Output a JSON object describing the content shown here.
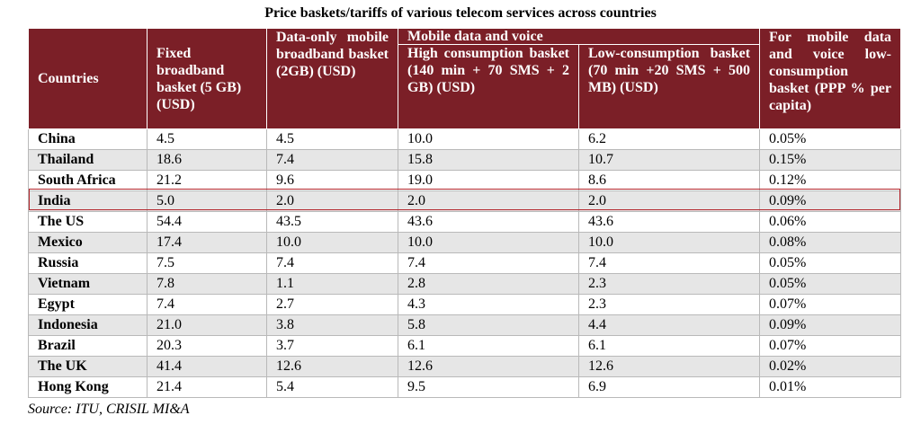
{
  "title": "Price baskets/tariffs of various telecom services across countries",
  "headers": {
    "countries": "Countries",
    "fixed_broadband": "Fixed broadband basket (5 GB) (USD)",
    "data_only": "Data-only mobile broadband basket (2GB) (USD)",
    "mobile_group": "Mobile data and voice",
    "high_consumption": "High consumption basket (140 min + 70 SMS + 2 GB) (USD)",
    "low_consumption": "Low-consumption basket (70 min +20 SMS + 500 MB) (USD)",
    "ppp": "For mobile data and voice low-consumption basket (PPP % per capita)"
  },
  "rows": [
    {
      "country": "China",
      "fixed": "4.5",
      "data": "4.5",
      "high": "10.0",
      "low": "6.2",
      "ppp": "0.05%"
    },
    {
      "country": "Thailand",
      "fixed": "18.6",
      "data": "7.4",
      "high": "15.8",
      "low": "10.7",
      "ppp": "0.15%"
    },
    {
      "country": "South Africa",
      "fixed": "21.2",
      "data": "9.6",
      "high": "19.0",
      "low": "8.6",
      "ppp": "0.12%"
    },
    {
      "country": "India",
      "fixed": "5.0",
      "data": "2.0",
      "high": "2.0",
      "low": "2.0",
      "ppp": "0.09%"
    },
    {
      "country": "The US",
      "fixed": "54.4",
      "data": "43.5",
      "high": "43.6",
      "low": "43.6",
      "ppp": "0.06%"
    },
    {
      "country": "Mexico",
      "fixed": "17.4",
      "data": "10.0",
      "high": "10.0",
      "low": "10.0",
      "ppp": "0.08%"
    },
    {
      "country": "Russia",
      "fixed": "7.5",
      "data": "7.4",
      "high": "7.4",
      "low": "7.4",
      "ppp": "0.05%"
    },
    {
      "country": "Vietnam",
      "fixed": "7.8",
      "data": "1.1",
      "high": "2.8",
      "low": "2.3",
      "ppp": "0.05%"
    },
    {
      "country": "Egypt",
      "fixed": "7.4",
      "data": "2.7",
      "high": "4.3",
      "low": "2.3",
      "ppp": "0.07%"
    },
    {
      "country": "Indonesia",
      "fixed": "21.0",
      "data": "3.8",
      "high": "5.8",
      "low": "4.4",
      "ppp": "0.09%"
    },
    {
      "country": "Brazil",
      "fixed": "20.3",
      "data": "3.7",
      "high": "6.1",
      "low": "6.1",
      "ppp": "0.07%"
    },
    {
      "country": "The UK",
      "fixed": "41.4",
      "data": "12.6",
      "high": "12.6",
      "low": "12.6",
      "ppp": "0.02%"
    },
    {
      "country": "Hong Kong",
      "fixed": "21.4",
      "data": "5.4",
      "high": "9.5",
      "low": "6.9",
      "ppp": "0.01%"
    }
  ],
  "source": "Source: ITU, CRISIL MI&A",
  "colors": {
    "header_bg": "#7b1f27",
    "highlight_border": "#b3262d",
    "shade": "#e6e6e6"
  }
}
